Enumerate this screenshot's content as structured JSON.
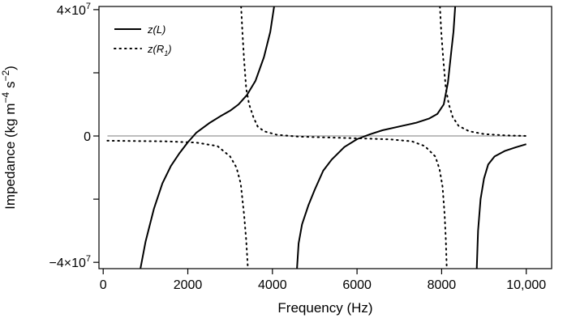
{
  "chart_data": {
    "type": "line",
    "xlabel": "Frequency (Hz)",
    "ylabel_parts": [
      "Impedance (kg m",
      "−4",
      " s",
      "−2",
      ")"
    ],
    "xlim": [
      -100,
      10600
    ],
    "ylim": [
      -42000000,
      41000000
    ],
    "x_ticks": [
      {
        "value": 0,
        "label": "0"
      },
      {
        "value": 2000,
        "label": "2000"
      },
      {
        "value": 4000,
        "label": "4000"
      },
      {
        "value": 6000,
        "label": "6000"
      },
      {
        "value": 8000,
        "label": "8000"
      },
      {
        "value": 10000,
        "label": "10,000"
      }
    ],
    "y_ticks": [
      {
        "value": 40000000,
        "mantissa": "4×10",
        "exp": "7"
      },
      {
        "value": 20000000,
        "mantissa": "",
        "exp": ""
      },
      {
        "value": 0,
        "mantissa": "0",
        "exp": ""
      },
      {
        "value": -20000000,
        "mantissa": "",
        "exp": ""
      },
      {
        "value": -40000000,
        "mantissa": "−4×10",
        "exp": "7"
      }
    ],
    "zero_line": {
      "value": 0,
      "x_range": [
        100,
        10000
      ],
      "color": "#bdbdbd"
    },
    "legend": {
      "placement": "top-left",
      "entries": [
        {
          "series": 0,
          "label_main": "z(L)",
          "label_sub": ""
        },
        {
          "series": 1,
          "label_main": "z(R",
          "label_sub": "1",
          "label_end": ")"
        }
      ]
    },
    "series": [
      {
        "name": "z(L)",
        "style": "solid",
        "color": "#000000",
        "segments": [
          [
            [
              880,
              -42000000
            ],
            [
              1000,
              -33500000
            ],
            [
              1200,
              -23000000
            ],
            [
              1400,
              -15000000
            ],
            [
              1600,
              -9500000
            ],
            [
              1800,
              -5500000
            ],
            [
              2000,
              -2000000
            ],
            [
              2200,
              1000000
            ],
            [
              2500,
              4000000
            ],
            [
              2800,
              6500000
            ],
            [
              3000,
              8000000
            ],
            [
              3200,
              10000000
            ],
            [
              3400,
              13000000
            ],
            [
              3600,
              17500000
            ],
            [
              3800,
              25000000
            ],
            [
              3950,
              33000000
            ],
            [
              4040,
              41000000
            ]
          ],
          [
            [
              4580,
              -42000000
            ],
            [
              4620,
              -34000000
            ],
            [
              4700,
              -28000000
            ],
            [
              4850,
              -22000000
            ],
            [
              5000,
              -17000000
            ],
            [
              5200,
              -11000000
            ],
            [
              5400,
              -7500000
            ],
            [
              5700,
              -3500000
            ],
            [
              6000,
              -1000000
            ],
            [
              6300,
              500000
            ],
            [
              6600,
              1800000
            ],
            [
              7000,
              3000000
            ],
            [
              7400,
              4200000
            ],
            [
              7700,
              5500000
            ],
            [
              7900,
              7000000
            ],
            [
              8050,
              10000000
            ],
            [
              8150,
              17000000
            ],
            [
              8230,
              27000000
            ],
            [
              8280,
              33000000
            ],
            [
              8320,
              41000000
            ]
          ],
          [
            [
              8830,
              -42000000
            ],
            [
              8860,
              -30000000
            ],
            [
              8920,
              -20000000
            ],
            [
              9000,
              -13500000
            ],
            [
              9100,
              -9000000
            ],
            [
              9250,
              -6500000
            ],
            [
              9500,
              -4700000
            ],
            [
              9750,
              -3600000
            ],
            [
              10000,
              -2600000
            ]
          ]
        ]
      },
      {
        "name": "z(R₁)",
        "style": "dotted",
        "color": "#000000",
        "segments": [
          [
            [
              100,
              -1500000
            ],
            [
              800,
              -1600000
            ],
            [
              1500,
              -1700000
            ],
            [
              2200,
              -2100000
            ],
            [
              2700,
              -3200000
            ],
            [
              3000,
              -6500000
            ],
            [
              3150,
              -10000000
            ],
            [
              3250,
              -15000000
            ],
            [
              3330,
              -25000000
            ],
            [
              3380,
              -33000000
            ],
            [
              3420,
              -42000000
            ]
          ],
          [
            [
              3260,
              41000000
            ],
            [
              3290,
              33000000
            ],
            [
              3330,
              24000000
            ],
            [
              3380,
              15000000
            ],
            [
              3450,
              10000000
            ],
            [
              3550,
              6000000
            ],
            [
              3650,
              3000000
            ],
            [
              3800,
              1500000
            ],
            [
              4100,
              400000
            ],
            [
              4600,
              -200000
            ],
            [
              5400,
              -500000
            ],
            [
              6200,
              -800000
            ],
            [
              6800,
              -1100000
            ],
            [
              7300,
              -1700000
            ],
            [
              7600,
              -3200000
            ],
            [
              7850,
              -6500000
            ],
            [
              7950,
              -10500000
            ],
            [
              8020,
              -16000000
            ],
            [
              8070,
              -25000000
            ],
            [
              8100,
              -33000000
            ],
            [
              8120,
              -42000000
            ]
          ],
          [
            [
              7960,
              41000000
            ],
            [
              7990,
              33000000
            ],
            [
              8040,
              24000000
            ],
            [
              8100,
              15000000
            ],
            [
              8170,
              10000000
            ],
            [
              8260,
              6000000
            ],
            [
              8400,
              3200000
            ],
            [
              8650,
              1500000
            ],
            [
              9000,
              600000
            ],
            [
              9500,
              200000
            ],
            [
              10000,
              0
            ]
          ]
        ]
      }
    ]
  }
}
